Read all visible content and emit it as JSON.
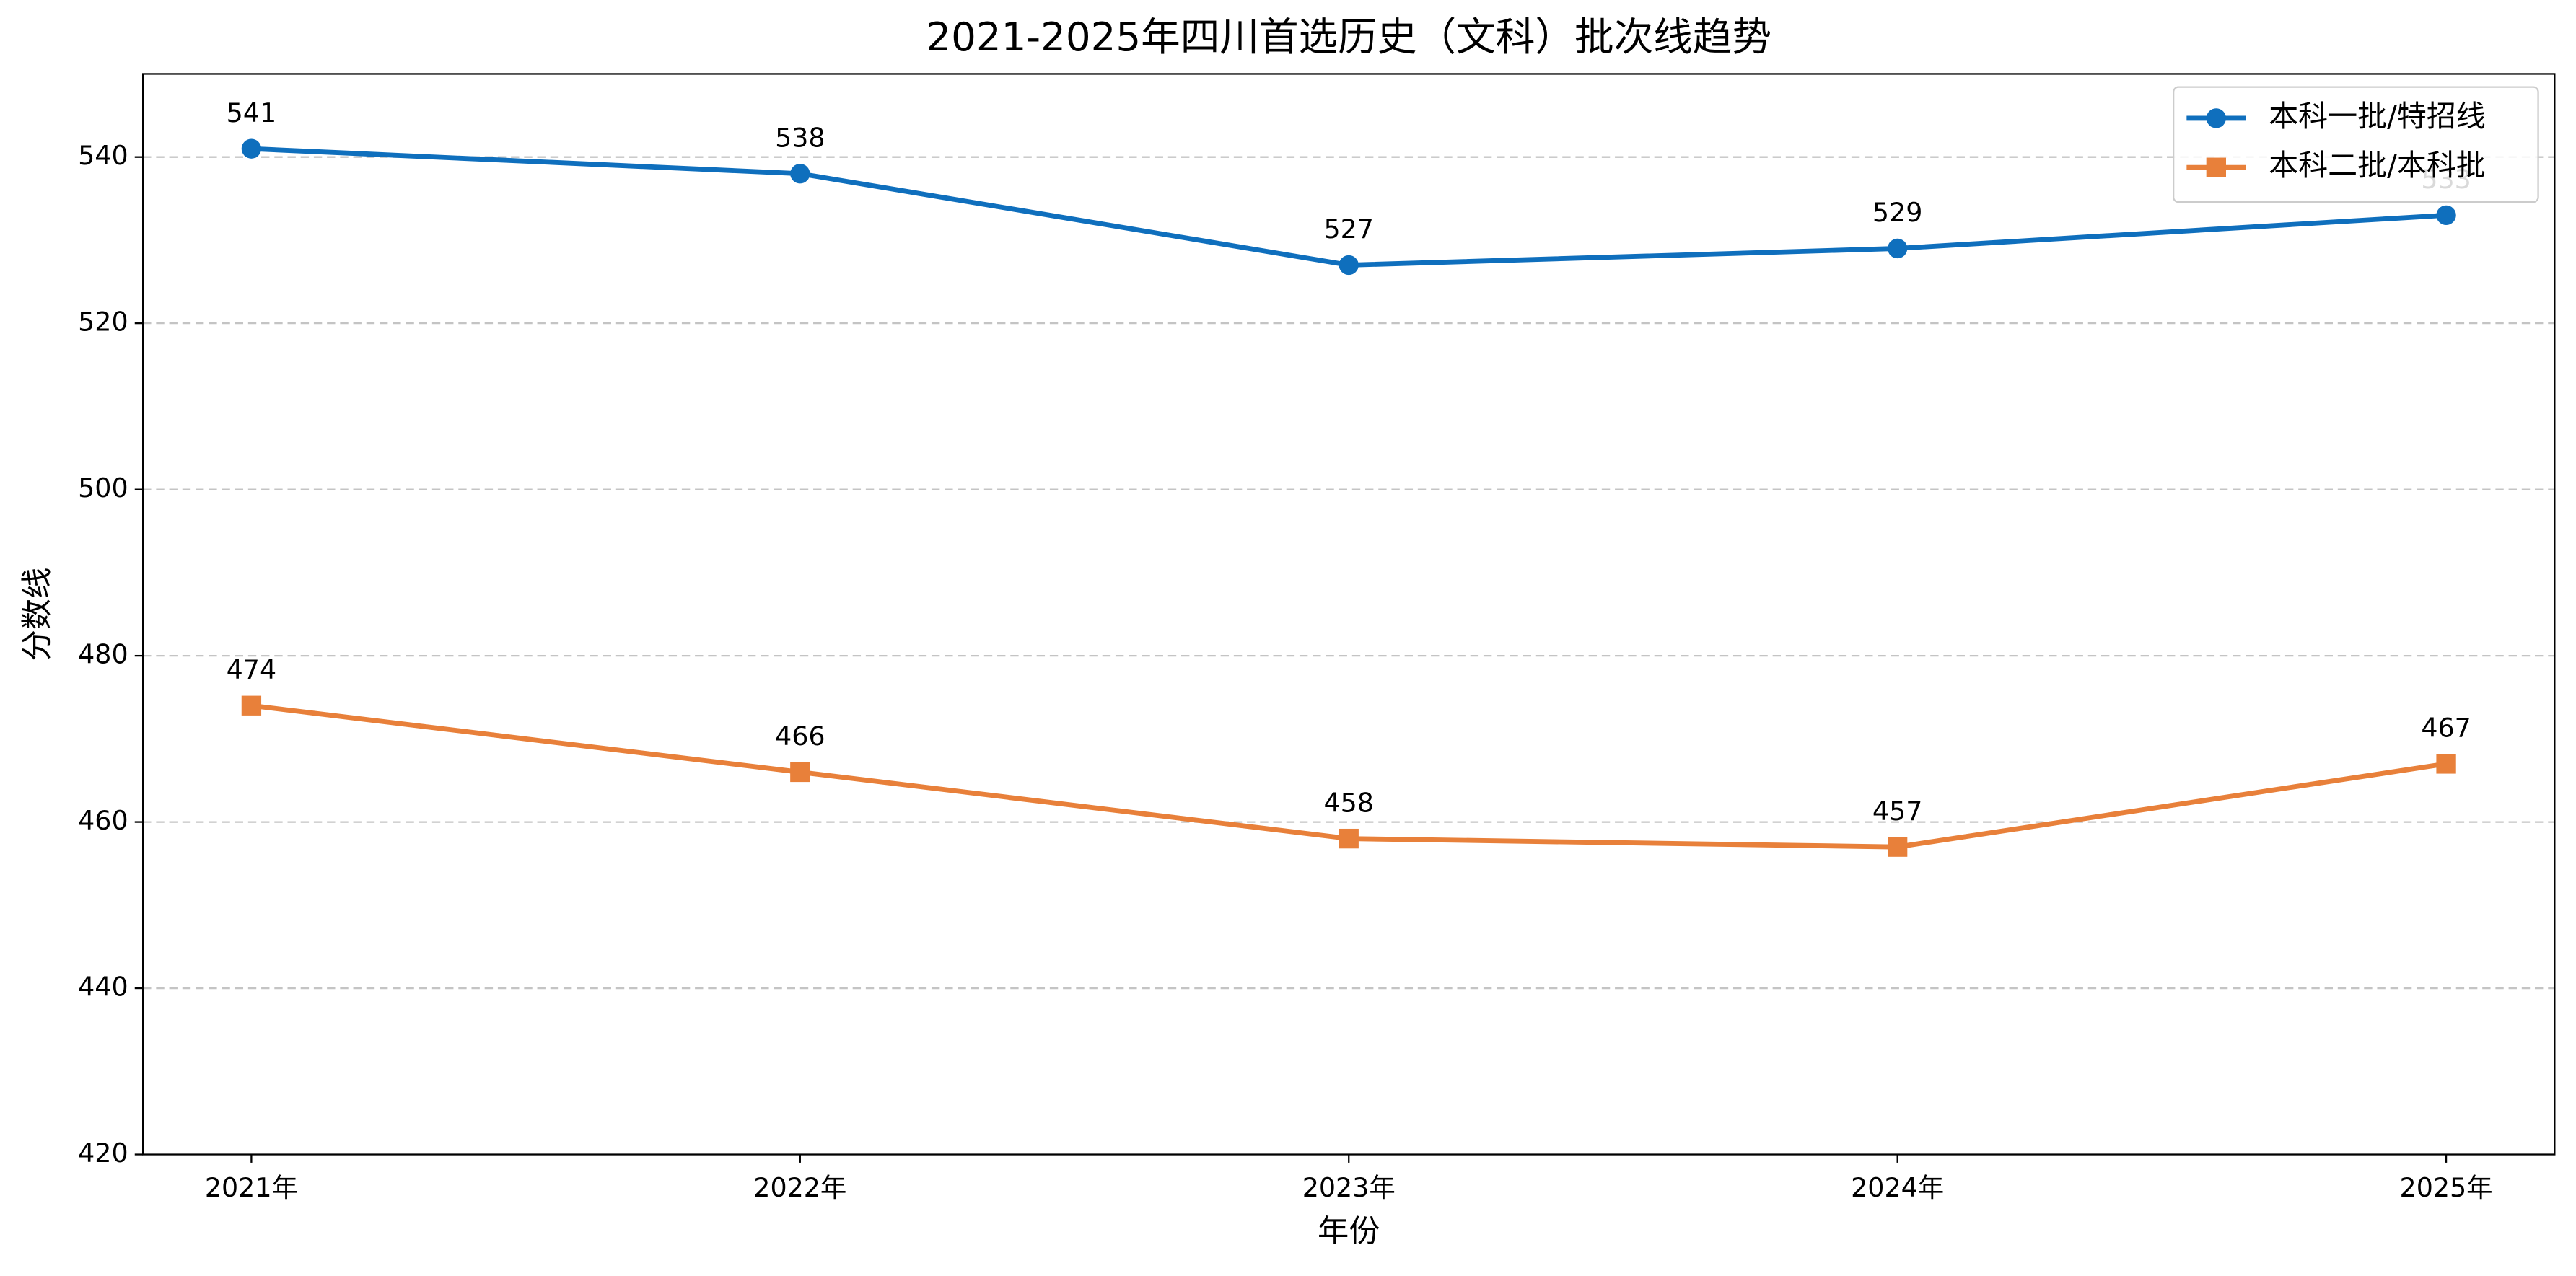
{
  "chart_data": {
    "type": "line",
    "title": "2021-2025年四川首选历史（文科）批次线趋势",
    "x_label": "年份",
    "y_label": "分数线",
    "categories": [
      "2021年",
      "2022年",
      "2023年",
      "2024年",
      "2025年"
    ],
    "series": [
      {
        "name": "本科一批/特招线",
        "color": "#0f6fbd",
        "marker": "circle",
        "values": [
          541,
          538,
          527,
          529,
          533
        ]
      },
      {
        "name": "本科二批/本科批",
        "color": "#e8803a",
        "marker": "square",
        "values": [
          474,
          466,
          458,
          457,
          467
        ]
      }
    ],
    "ylim": [
      420,
      550
    ],
    "yticks": [
      420,
      440,
      460,
      480,
      500,
      520,
      540
    ],
    "grid": true,
    "legend": "upper right"
  }
}
